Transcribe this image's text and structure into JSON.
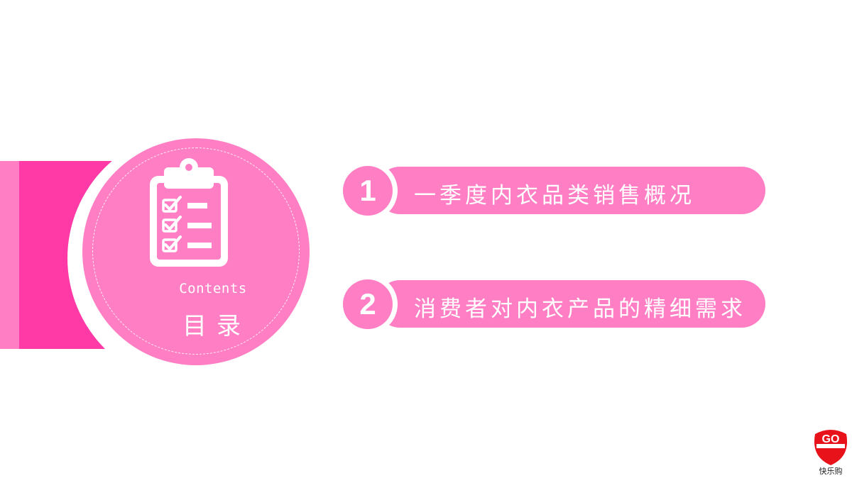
{
  "toc": {
    "contents_en": "Contents",
    "contents_zh": "目录"
  },
  "items": [
    {
      "number": "1",
      "label": "一季度内衣品类销售概况"
    },
    {
      "number": "2",
      "label": "消费者对内衣产品的精细需求"
    }
  ],
  "logo": {
    "brand_text": "GO",
    "caption": "快乐购"
  },
  "colors": {
    "pink": "#ff7ec4",
    "deep_pink": "#ff3aa6",
    "logo_red": "#e8121b"
  },
  "icons": {
    "toc": "clipboard-checklist-icon"
  }
}
